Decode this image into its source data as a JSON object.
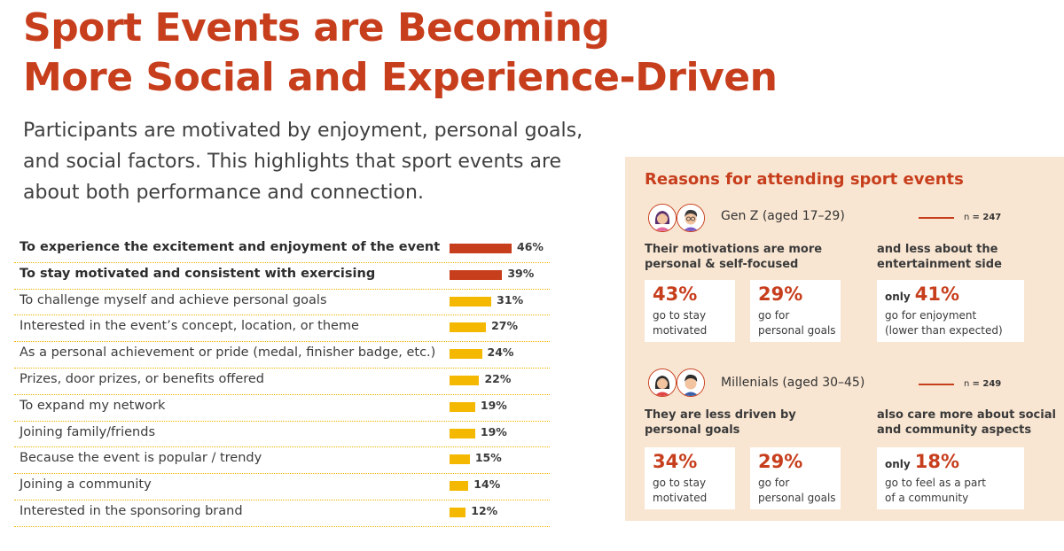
{
  "title_line1": "Sport Events are Becoming",
  "title_line2": "More Social and Experience-Driven",
  "subtitle_line1": "Participants are motivated by enjoyment, personal goals,",
  "subtitle_line2": "and social factors. This highlights that sport events are",
  "subtitle_line3": "about both performance and connection.",
  "colors": {
    "accent": "#c73e1d",
    "bar_highlight": "#c73e1d",
    "bar_default": "#f5b800",
    "panel_bg": "#f9e6d2"
  },
  "chart_data": {
    "type": "bar",
    "orientation": "horizontal",
    "categories": [
      "To experience the excitement and enjoyment of the event",
      "To stay motivated and consistent with exercising",
      "To challenge myself and achieve personal goals",
      "Interested in the event’s concept, location, or theme",
      "As a personal achievement or pride (medal, finisher badge, etc.)",
      "Prizes, door prizes, or benefits offered",
      "To expand my network",
      "Joining family/friends",
      "Because the event is popular / trendy",
      "Joining a community",
      "Interested in the sponsoring brand"
    ],
    "values": [
      46,
      39,
      31,
      27,
      24,
      22,
      19,
      19,
      15,
      14,
      12
    ],
    "value_labels": [
      "46%",
      "39%",
      "31%",
      "27%",
      "24%",
      "22%",
      "19%",
      "19%",
      "15%",
      "14%",
      "12%"
    ],
    "highlighted": [
      true,
      true,
      false,
      false,
      false,
      false,
      false,
      false,
      false,
      false,
      false
    ],
    "unit": "%",
    "xlim": [
      0,
      50
    ]
  },
  "panel": {
    "title": "Reasons for attending sport events",
    "groups": [
      {
        "label": "Gen Z (aged 17–29)",
        "n_label": "n",
        "n_value": "= 247",
        "left_desc_line1": "Their motivations are more",
        "left_desc_line2": "personal & self-focused",
        "right_desc_line1": "and less about the",
        "right_desc_line2": "entertainment side",
        "cards": [
          {
            "pct": "43%",
            "line1": "go to stay",
            "line2": "motivated"
          },
          {
            "pct": "29%",
            "line1": "go for",
            "line2": "personal goals"
          },
          {
            "prefix": "only",
            "pct": "41%",
            "line1": "go for enjoyment",
            "line2": "(lower than expected)"
          }
        ]
      },
      {
        "label": "Millenials (aged 30–45)",
        "n_label": "n",
        "n_value": "= 249",
        "left_desc_line1": "They are less driven by",
        "left_desc_line2": "personal goals",
        "right_desc_line1": "also care more about social",
        "right_desc_line2": "and community aspects",
        "cards": [
          {
            "pct": "34%",
            "line1": "go to stay",
            "line2": "motivated"
          },
          {
            "pct": "29%",
            "line1": "go for",
            "line2": "personal goals"
          },
          {
            "prefix": "only",
            "pct": "18%",
            "line1": "go to feel as a part",
            "line2": "of a community"
          }
        ]
      }
    ]
  }
}
